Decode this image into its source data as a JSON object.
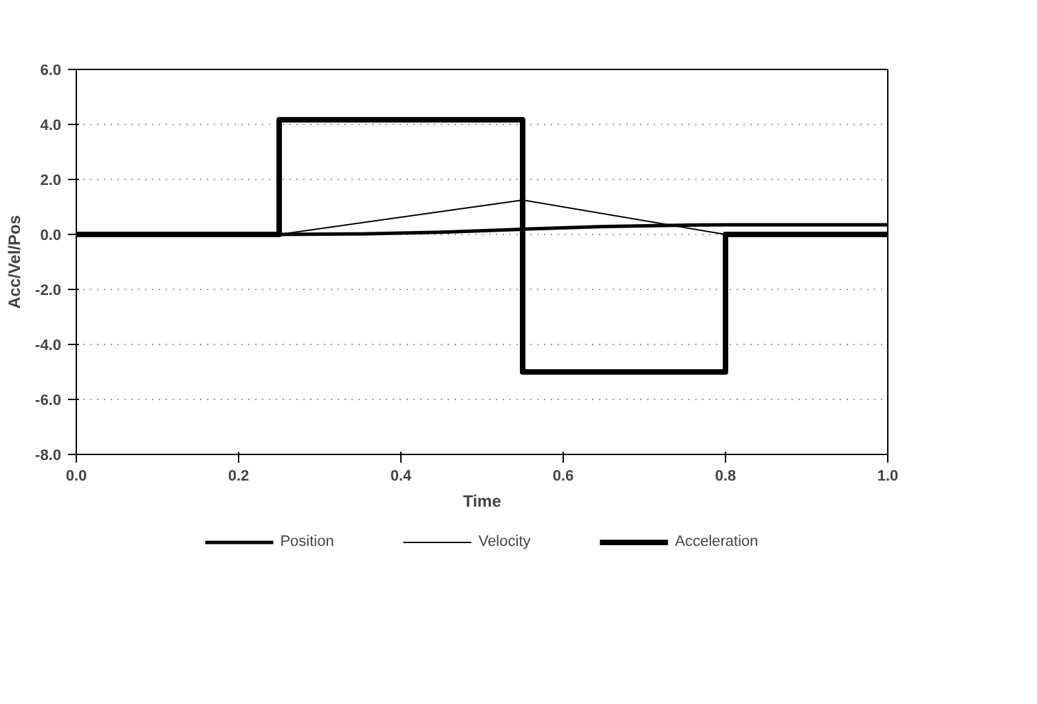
{
  "chart_data": {
    "type": "line",
    "xlabel": "Time",
    "ylabel": "Acc/Vel/Pos",
    "xlim": [
      0.0,
      1.0
    ],
    "xticks": [
      {
        "value": 0,
        "label": "0.0"
      },
      {
        "value": 0.2,
        "label": "0.2"
      },
      {
        "value": 0.4,
        "label": "0.4"
      },
      {
        "value": 0.6,
        "label": "0.6"
      },
      {
        "value": 0.8,
        "label": "0.8"
      },
      {
        "value": 1,
        "label": "1.0"
      }
    ],
    "ylim": [
      -8.0,
      6.0
    ],
    "yticks": [
      {
        "value": -8,
        "label": "-8.0"
      },
      {
        "value": -6,
        "label": "-6.0"
      },
      {
        "value": -4,
        "label": "-4.0"
      },
      {
        "value": -2,
        "label": "-2.0"
      },
      {
        "value": 0,
        "label": "0.0"
      },
      {
        "value": 2,
        "label": "2.0"
      },
      {
        "value": 4,
        "label": "4.0"
      },
      {
        "value": 6,
        "label": "6.0"
      }
    ],
    "grid": "y",
    "legend": "bottom",
    "series": [
      {
        "name": "Position",
        "color": "#000000",
        "x": [
          0,
          0.25,
          0.35,
          0.45,
          0.55,
          0.65,
          0.75,
          0.8,
          1.0
        ],
        "values": [
          0,
          0,
          0.02,
          0.08,
          0.19,
          0.29,
          0.34,
          0.35,
          0.35
        ]
      },
      {
        "name": "Velocity",
        "color": "#000000",
        "x": [
          0,
          0.25,
          0.55,
          0.8,
          1.0
        ],
        "values": [
          0,
          0,
          1.25,
          0,
          0
        ]
      },
      {
        "name": "Acceleration",
        "color": "#000000",
        "x": [
          0,
          0.25,
          0.25,
          0.55,
          0.55,
          0.8,
          0.8,
          1.0
        ],
        "values": [
          0,
          0,
          4.17,
          4.17,
          -5.0,
          -5.0,
          0,
          0
        ]
      }
    ]
  }
}
